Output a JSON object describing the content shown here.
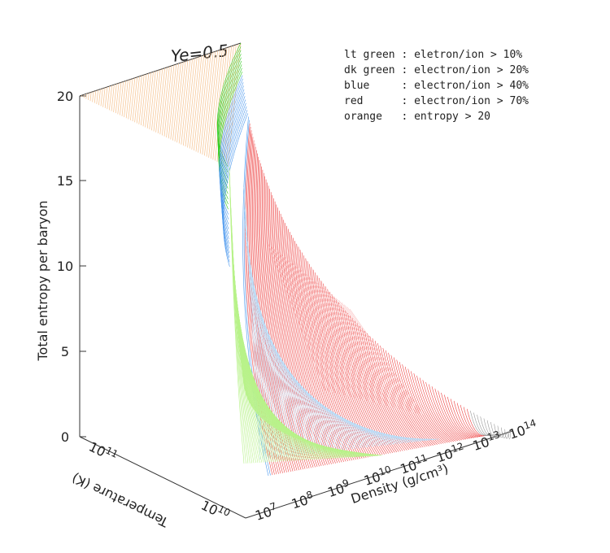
{
  "chart_data": {
    "type": "surface",
    "title": "Ye=0.5",
    "zlabel": "Total entropy per baryon",
    "xlabel": "Density (g/cm³)",
    "ylabel": "Temperature (K)",
    "zlim": [
      0,
      20
    ],
    "z_ticks": [
      "0",
      "5",
      "10",
      "15",
      "20"
    ],
    "x_ticks": [
      {
        "base": "10",
        "exp": "7"
      },
      {
        "base": "10",
        "exp": "8"
      },
      {
        "base": "10",
        "exp": "9"
      },
      {
        "base": "10",
        "exp": "10"
      },
      {
        "base": "10",
        "exp": "11"
      },
      {
        "base": "10",
        "exp": "12"
      },
      {
        "base": "10",
        "exp": "13"
      },
      {
        "base": "10",
        "exp": "14"
      }
    ],
    "y_ticks": [
      {
        "base": "10",
        "exp": "11"
      },
      {
        "base": "10",
        "exp": "10"
      }
    ],
    "legend": [
      {
        "text": "lt green : eletron/ion > 10%",
        "color": "#b8f28a"
      },
      {
        "text": "dk green : electron/ion > 20%",
        "color": "#33cc22"
      },
      {
        "text": "blue     : electron/ion > 40%",
        "color": "#4d99ee"
      },
      {
        "text": "red      : electron/ion > 70%",
        "color": "#ee4444"
      },
      {
        "text": "orange   : entropy > 20",
        "color": "#f7c89a"
      }
    ],
    "colors": {
      "lt_green": "#b8f28a",
      "dk_green": "#33cc22",
      "blue": "#4d99ee",
      "light_blue": "#bcdcf6",
      "red": "#ee4444",
      "light_red": "#f7a7a7",
      "orange": "#f7c89a",
      "gray": "#999999"
    }
  }
}
